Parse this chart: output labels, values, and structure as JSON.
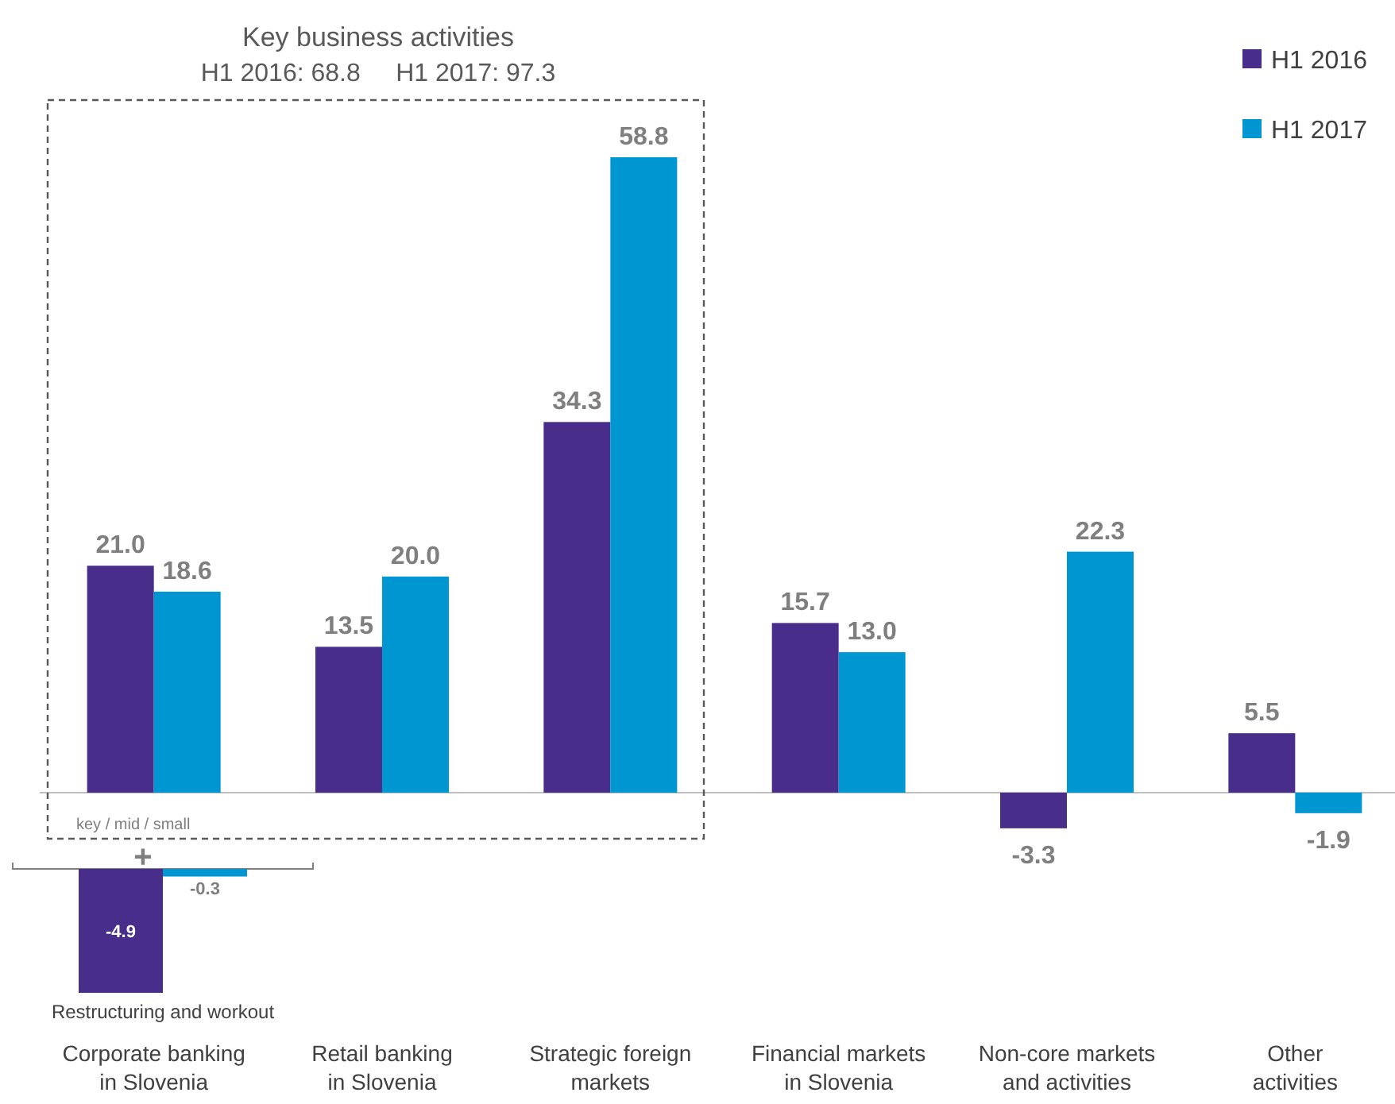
{
  "chart_data": [
    {
      "type": "bar",
      "categories": [
        "Corporate banking\nin Slovenia",
        "Retail banking\nin Slovenia",
        "Strategic foreign\nmarkets",
        "Financial markets\nin Slovenia",
        "Non-core markets\nand activities",
        "Other\nactivities"
      ],
      "series": [
        {
          "name": "H1 2016",
          "color": "#482d8b",
          "values": [
            21.0,
            13.5,
            34.3,
            15.7,
            -3.3,
            5.5
          ],
          "value_labels": [
            "21.0",
            "13.5",
            "34.3",
            "15.7",
            "-3.3",
            "5.5"
          ]
        },
        {
          "name": "H1 2017",
          "color": "#0096d2",
          "values": [
            18.6,
            20.0,
            58.8,
            13.0,
            22.3,
            -1.9
          ],
          "value_labels": [
            "18.6",
            "20.0",
            "58.8",
            "13.0",
            "22.3",
            "-1.9"
          ]
        }
      ],
      "legend": "top right",
      "annotations": [
        "Key business activities",
        "H1 2016: 68.8     H1 2017: 97.3",
        "key / mid / small"
      ]
    },
    {
      "type": "bar",
      "categories": [
        null
      ],
      "xlabel": "Restructuring and workout",
      "series": [
        {
          "color": "#482d8b",
          "values": [
            -4.9
          ],
          "value_labels": [
            "-4.9"
          ]
        },
        {
          "color": "#0096d2",
          "values": [
            -0.3
          ],
          "value_labels": [
            "-0.3"
          ]
        }
      ],
      "annotations": [
        "+"
      ]
    }
  ]
}
